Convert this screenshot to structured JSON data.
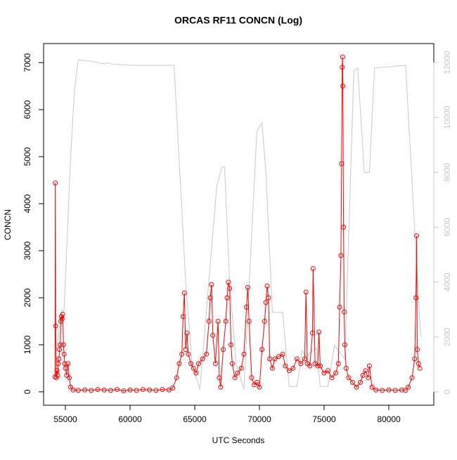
{
  "chart_data": {
    "type": "line",
    "title": "ORCAS RF11 CONCN (Log)",
    "x_label": "UTC Seconds",
    "y_label": "CONCN",
    "xlim": [
      53315,
      83478
    ],
    "ylim": [
      -285,
      7405
    ],
    "y2lim": [
      -486,
      12694
    ],
    "xticks": [
      55000,
      60000,
      65000,
      70000,
      75000,
      80000
    ],
    "yticks": [
      0,
      1000,
      2000,
      3000,
      4000,
      5000,
      6000,
      7000
    ],
    "y2ticks": [
      0,
      2000,
      4000,
      6000,
      8000,
      10000,
      12000
    ],
    "y2_color": "#c8c8c8",
    "series": [
      {
        "color": "#c8c8c8",
        "axis": "y2",
        "markers": false,
        "x": [
          54300,
          54700,
          54900,
          55400,
          55700,
          56000,
          57000,
          58000,
          58300,
          58500,
          60000,
          63000,
          63400,
          64300,
          64800,
          65400,
          66700,
          67100,
          67300,
          67700,
          68200,
          68800,
          69800,
          70200,
          70500,
          71000,
          71200,
          71800,
          72300,
          72900,
          73300,
          73600,
          74400,
          74700,
          75300,
          75800,
          76600,
          77300,
          77600,
          78100,
          78500,
          78900,
          81300,
          82400,
          82500
        ],
        "values": [
          1500,
          2900,
          3000,
          8500,
          11000,
          12100,
          12050,
          11950,
          12000,
          11950,
          11900,
          11900,
          11900,
          4000,
          1000,
          100,
          7500,
          8200,
          8200,
          4000,
          1000,
          100,
          9500,
          9800,
          8000,
          2900,
          2900,
          2900,
          200,
          200,
          1500,
          1300,
          1600,
          200,
          200,
          1700,
          1200,
          11700,
          11800,
          8000,
          8000,
          11800,
          11900,
          2500,
          2000
        ]
      },
      {
        "color": "#ff0000",
        "axis": "y",
        "markers": true,
        "x": [
          54200,
          54220,
          54250,
          54300,
          54350,
          54400,
          54450,
          54500,
          54550,
          54600,
          54650,
          54700,
          54750,
          54800,
          54850,
          54900,
          54950,
          55000,
          55100,
          55200,
          55300,
          55400,
          55600,
          56000,
          56500,
          57000,
          57500,
          58000,
          58500,
          59000,
          59500,
          60000,
          60500,
          61000,
          61500,
          62000,
          62500,
          63000,
          63300,
          63600,
          63800,
          64000,
          64100,
          64200,
          64300,
          64400,
          64500,
          64700,
          64900,
          65100,
          65300,
          65600,
          65900,
          66100,
          66200,
          66300,
          66400,
          66600,
          66800,
          66900,
          67000,
          67200,
          67400,
          67500,
          67600,
          67700,
          67800,
          67900,
          68100,
          68300,
          68600,
          68800,
          69000,
          69100,
          69200,
          69400,
          69600,
          69800,
          70000,
          70200,
          70400,
          70500,
          70600,
          70700,
          70800,
          71000,
          71200,
          71500,
          71800,
          72000,
          72300,
          72600,
          72900,
          73200,
          73500,
          73600,
          73700,
          73900,
          74100,
          74150,
          74300,
          74500,
          74600,
          74700,
          75000,
          75300,
          75600,
          75900,
          76100,
          76200,
          76300,
          76350,
          76400,
          76430,
          76450,
          76500,
          76550,
          76600,
          76700,
          76900,
          77200,
          77500,
          77800,
          78000,
          78200,
          78400,
          78500,
          78700,
          79000,
          79500,
          80000,
          80500,
          81000,
          81300,
          81500,
          81800,
          82000,
          82100,
          82150,
          82200,
          82300,
          82400
        ],
        "values": [
          320,
          4440,
          1400,
          300,
          450,
          350,
          600,
          700,
          900,
          1000,
          1500,
          1600,
          1550,
          1650,
          1000,
          800,
          600,
          500,
          350,
          600,
          300,
          100,
          40,
          30,
          40,
          30,
          50,
          40,
          30,
          50,
          20,
          40,
          30,
          50,
          40,
          30,
          50,
          40,
          80,
          300,
          600,
          800,
          1600,
          2100,
          900,
          1250,
          800,
          600,
          500,
          400,
          600,
          700,
          800,
          1500,
          2000,
          2280,
          1200,
          600,
          1500,
          300,
          100,
          900,
          1500,
          2000,
          2330,
          2200,
          1000,
          600,
          300,
          400,
          500,
          800,
          1800,
          2220,
          1500,
          300,
          150,
          200,
          100,
          900,
          1500,
          1900,
          2250,
          2000,
          700,
          500,
          700,
          750,
          800,
          550,
          450,
          500,
          700,
          600,
          700,
          2120,
          600,
          550,
          1250,
          2620,
          600,
          550,
          1270,
          550,
          400,
          450,
          300,
          400,
          600,
          1800,
          2900,
          4850,
          6900,
          7120,
          6500,
          3500,
          1700,
          1000,
          500,
          300,
          200,
          100,
          200,
          350,
          450,
          300,
          550,
          100,
          40,
          30,
          40,
          30,
          40,
          30,
          100,
          300,
          700,
          2000,
          3320,
          900,
          600,
          500
        ]
      }
    ]
  }
}
